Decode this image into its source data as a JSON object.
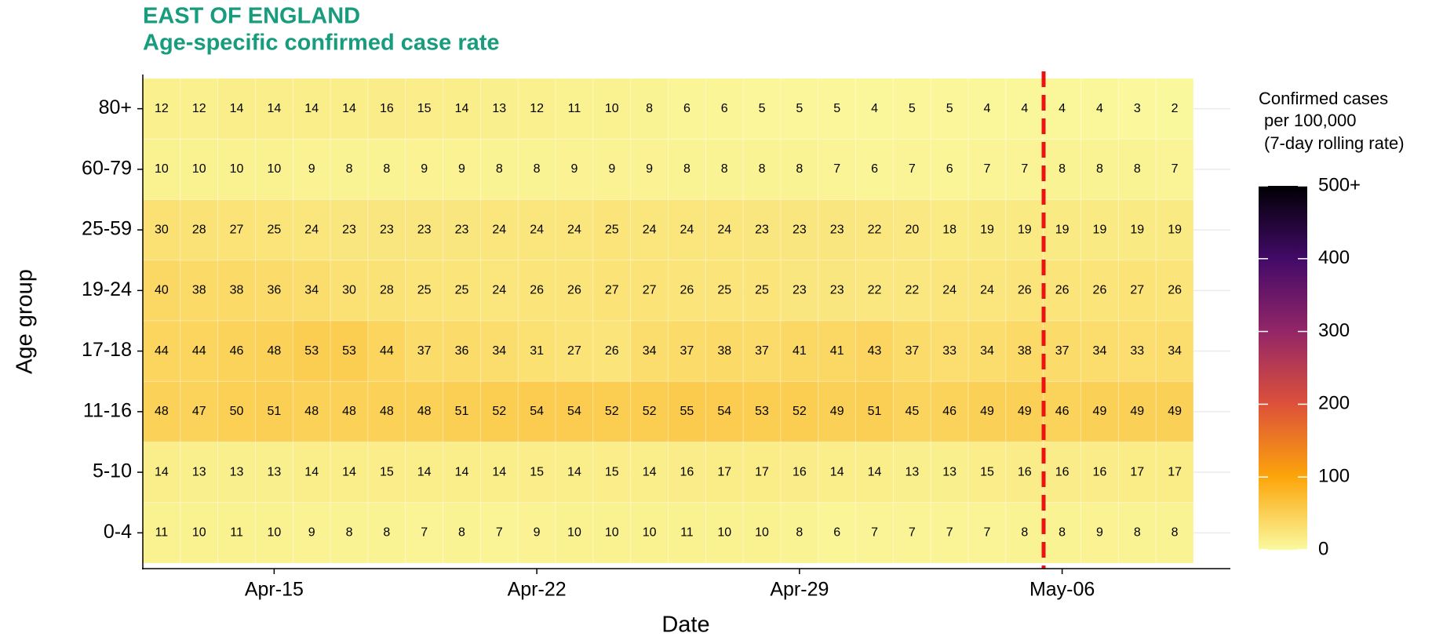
{
  "chart_data": {
    "type": "heatmap",
    "title": "EAST OF ENGLAND",
    "subtitle": "Age-specific confirmed case rate",
    "x_label": "Date",
    "y_label": "Age group",
    "x_categories": [
      null,
      null,
      null,
      "Apr-15",
      null,
      null,
      null,
      null,
      null,
      null,
      "Apr-22",
      null,
      null,
      null,
      null,
      null,
      null,
      "Apr-29",
      null,
      null,
      null,
      null,
      null,
      null,
      "May-06",
      null,
      null,
      null
    ],
    "y_categories": [
      "80+",
      "60-79",
      "25-59",
      "19-24",
      "17-18",
      "11-16",
      "5-10",
      "0-4"
    ],
    "values": [
      [
        12,
        12,
        14,
        14,
        14,
        14,
        16,
        15,
        14,
        13,
        12,
        11,
        10,
        8,
        6,
        6,
        5,
        5,
        5,
        4,
        5,
        5,
        4,
        4,
        4,
        4,
        3,
        2
      ],
      [
        10,
        10,
        10,
        10,
        9,
        8,
        8,
        9,
        9,
        8,
        8,
        9,
        9,
        9,
        8,
        8,
        8,
        8,
        7,
        6,
        7,
        6,
        7,
        7,
        8,
        8,
        8,
        7
      ],
      [
        30,
        28,
        27,
        25,
        24,
        23,
        23,
        23,
        23,
        24,
        24,
        24,
        25,
        24,
        24,
        24,
        23,
        23,
        23,
        22,
        20,
        18,
        19,
        19,
        19,
        19,
        19,
        19
      ],
      [
        40,
        38,
        38,
        36,
        34,
        30,
        28,
        25,
        25,
        24,
        26,
        26,
        27,
        27,
        26,
        25,
        25,
        23,
        23,
        22,
        22,
        24,
        24,
        26,
        26,
        26,
        27,
        26
      ],
      [
        44,
        44,
        46,
        48,
        53,
        53,
        44,
        37,
        36,
        34,
        31,
        27,
        26,
        34,
        37,
        38,
        37,
        41,
        41,
        43,
        37,
        33,
        34,
        38,
        37,
        34,
        33,
        34
      ],
      [
        48,
        47,
        50,
        51,
        48,
        48,
        48,
        48,
        51,
        52,
        54,
        54,
        52,
        52,
        55,
        54,
        53,
        52,
        49,
        51,
        45,
        46,
        49,
        49,
        46,
        49,
        49,
        49
      ],
      [
        14,
        13,
        13,
        13,
        14,
        14,
        15,
        14,
        14,
        14,
        15,
        14,
        15,
        14,
        16,
        17,
        17,
        16,
        14,
        14,
        13,
        13,
        15,
        16,
        16,
        16,
        17,
        17
      ],
      [
        11,
        10,
        11,
        10,
        9,
        8,
        8,
        7,
        8,
        7,
        9,
        10,
        10,
        10,
        11,
        10,
        10,
        8,
        6,
        7,
        7,
        7,
        7,
        8,
        8,
        9,
        8,
        8
      ]
    ],
    "colorbar": {
      "title": [
        "Confirmed cases",
        "per 100,000",
        "(7-day rolling rate)"
      ],
      "lim": [
        0,
        500
      ],
      "ticks": [
        0,
        100,
        200,
        300,
        400,
        {
          "value": 500,
          "label": "500+"
        }
      ],
      "colors": [
        "#fafaa0",
        "#fca50a",
        "#dd513a",
        "#932667",
        "#420a68",
        "#000004"
      ]
    },
    "vline_color": "#ee1111",
    "title_color": "#179c7d"
  }
}
